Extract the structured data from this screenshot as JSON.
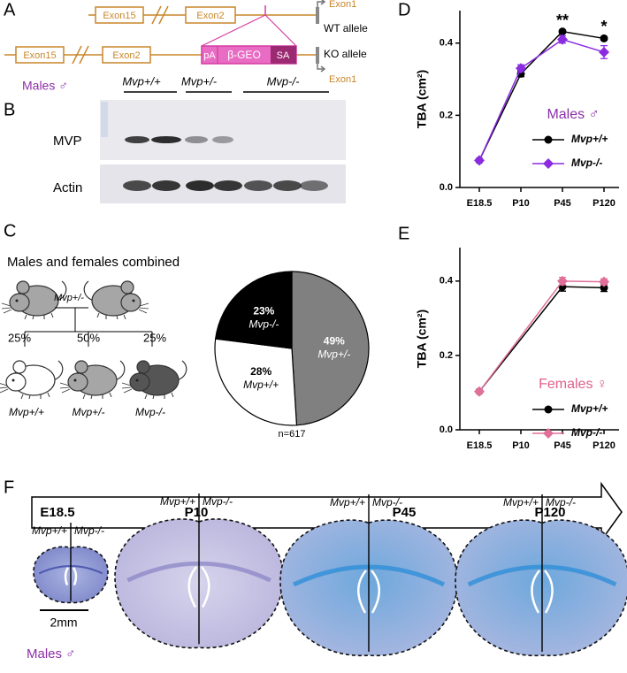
{
  "panel_labels": [
    "A",
    "B",
    "C",
    "D",
    "E",
    "F"
  ],
  "gene_diagram": {
    "wt": {
      "exons": [
        "Exon15",
        "Exon2",
        "Exon1"
      ],
      "label": "WT allele"
    },
    "ko": {
      "exons": [
        "Exon15",
        "Exon2",
        "Exon1"
      ],
      "cassette": [
        "pA",
        "β-GEO",
        "SA"
      ],
      "label": "KO allele"
    }
  },
  "western_blot": {
    "group": "Males ♂",
    "genotypes": [
      "Mvp+/+",
      "Mvp+/-",
      "Mvp-/-"
    ],
    "rows": [
      "MVP",
      "Actin"
    ]
  },
  "breeding": {
    "title": "Males and females combined",
    "parents": "Mvp+/-",
    "ratios": [
      "25%",
      "50%",
      "25%"
    ],
    "offspring": [
      "Mvp+/+",
      "Mvp+/-",
      "Mvp-/-"
    ]
  },
  "chart_data": [
    {
      "type": "pie",
      "categories": [
        "Mvp+/-",
        "Mvp+/+",
        "Mvp-/-"
      ],
      "values": [
        49,
        28,
        23
      ],
      "value_labels": [
        "49%",
        "28%",
        "23%"
      ],
      "colors": [
        "#808080",
        "#ffffff",
        "#000000"
      ],
      "note": "n=617"
    },
    {
      "type": "line",
      "categories": [
        "E18.5",
        "P10",
        "P45",
        "P120"
      ],
      "ylabel": "TBA (cm²)",
      "ylim": [
        0,
        0.49
      ],
      "yticks": [
        {
          "value": 0,
          "label": "0.0"
        },
        0.2,
        0.4
      ],
      "legend_title": "Males ♂",
      "legend_color": "#8b2fa8",
      "series": [
        {
          "name": "Mvp+/+",
          "color": "#000000",
          "marker": "circle",
          "values": [
            0.075,
            0.315,
            0.432,
            0.413
          ],
          "errors": [
            0.005,
            0.008,
            0.004,
            0.005
          ]
        },
        {
          "name": "Mvp-/-",
          "color": "#8a2be2",
          "marker": "diamond",
          "values": [
            0.075,
            0.33,
            0.41,
            0.375
          ],
          "errors": [
            0.005,
            0.01,
            0.01,
            0.018
          ]
        }
      ],
      "annotations": [
        {
          "text": "**",
          "x": "P45"
        },
        {
          "text": "*",
          "x": "P120"
        }
      ]
    },
    {
      "type": "line",
      "categories": [
        "E18.5",
        "P10",
        "P45",
        "P120"
      ],
      "ylabel": "TBA (cm²)",
      "ylim": [
        0,
        0.49
      ],
      "yticks": [
        {
          "value": 0,
          "label": "0.0"
        },
        0.2,
        0.4
      ],
      "connect_gaps": true,
      "legend_title": "Females ♀",
      "legend_color": "#e0608a",
      "series": [
        {
          "name": "Mvp+/+",
          "color": "#000000",
          "marker": "circle",
          "values": [
            0.103,
            null,
            0.385,
            0.382
          ],
          "errors": [
            0.004,
            null,
            0.012,
            0.01
          ]
        },
        {
          "name": "Mvp-/-",
          "color": "#e0709a",
          "marker": "diamond",
          "values": [
            0.103,
            null,
            0.4,
            0.398
          ],
          "errors": [
            0.004,
            null,
            0.01,
            0.008
          ]
        }
      ]
    }
  ],
  "timeline": {
    "stages": [
      "E18.5",
      "P10",
      "P45",
      "P120"
    ],
    "genotypes": [
      "Mvp+/+",
      "Mvp-/-"
    ],
    "scale": "2mm",
    "group": "Males ♂"
  }
}
